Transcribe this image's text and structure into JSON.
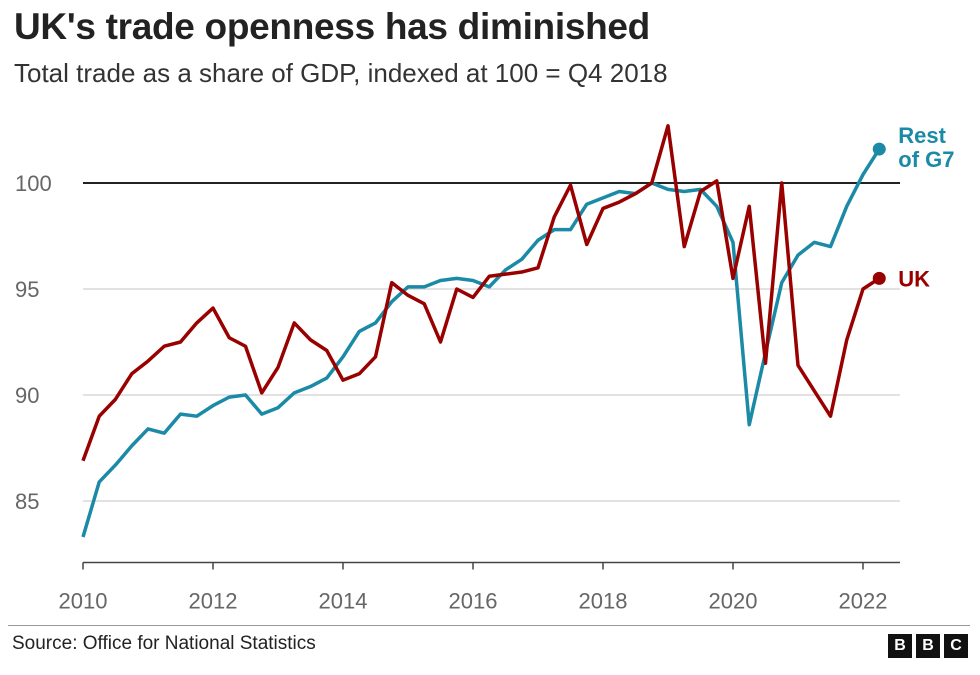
{
  "chart_data": {
    "type": "line",
    "title": "UK's trade openness has diminished",
    "subtitle": "Total trade as a share of GDP, indexed at 100 = Q4 2018",
    "xlabel": "",
    "ylabel": "",
    "x_start": 2010,
    "x_step": 0.25,
    "xlim": [
      2010,
      2022.55
    ],
    "ylim": [
      82.1,
      103
    ],
    "x_ticks": [
      "2010",
      "2012",
      "2014",
      "2016",
      "2018",
      "2020",
      "2022"
    ],
    "y_ticks": [
      "85",
      "90",
      "95",
      "100"
    ],
    "reference_line": 100,
    "grid": true,
    "series": [
      {
        "name": "Rest of G7",
        "label_lines": [
          "Rest",
          "of G7"
        ],
        "color": "#1b8aa6",
        "values": [
          83.3,
          85.9,
          86.7,
          87.6,
          88.4,
          88.2,
          89.1,
          89.0,
          89.5,
          89.9,
          90.0,
          89.1,
          89.4,
          90.1,
          90.4,
          90.8,
          91.8,
          93.0,
          93.4,
          94.4,
          95.1,
          95.1,
          95.4,
          95.5,
          95.4,
          95.1,
          95.9,
          96.4,
          97.3,
          97.8,
          97.8,
          99.0,
          99.3,
          99.6,
          99.5,
          100.0,
          99.7,
          99.6,
          99.7,
          98.9,
          97.2,
          88.6,
          92.0,
          95.3,
          96.6,
          97.2,
          97.0,
          98.9,
          100.4,
          101.6
        ]
      },
      {
        "name": "UK",
        "label_lines": [
          "UK"
        ],
        "color": "#990000",
        "values": [
          86.9,
          89.0,
          89.8,
          91.0,
          91.6,
          92.3,
          92.5,
          93.4,
          94.1,
          92.7,
          92.3,
          90.1,
          91.3,
          93.4,
          92.6,
          92.1,
          90.7,
          91.0,
          91.8,
          95.3,
          94.7,
          94.3,
          92.5,
          95.0,
          94.6,
          95.6,
          95.7,
          95.8,
          96.0,
          98.4,
          99.9,
          97.1,
          98.8,
          99.1,
          99.5,
          100.0,
          102.7,
          97.0,
          99.6,
          100.1,
          95.5,
          98.9,
          91.5,
          100.0,
          91.4,
          90.2,
          89.0,
          92.6,
          95.0,
          95.5
        ]
      }
    ]
  },
  "footer": {
    "source": "Source: Office for National Statistics",
    "logo": [
      "B",
      "B",
      "C"
    ]
  }
}
